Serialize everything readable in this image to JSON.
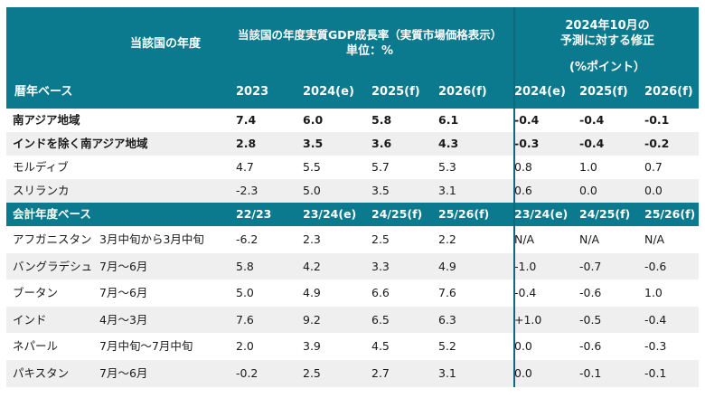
{
  "header": {
    "country_fiscal_year": "当該国の年度",
    "gdp_title_line1": "当該国の年度実質GDP成長率（実質市場価格表示）",
    "gdp_title_line2": "単位：%",
    "revision_line1": "2024年10月の",
    "revision_line2": "予測に対する修正",
    "revision_line3": "(%ポイント）",
    "calendar_basis": "暦年ベース",
    "calendar_columns": [
      "2023",
      "2024(e)",
      "2025(f)",
      "2026(f)",
      "2024(e)",
      "2025(f)",
      "2026(f)"
    ]
  },
  "calendar_rows": [
    {
      "name": "南アジア地域",
      "period": "",
      "values": [
        "7.4",
        "6.0",
        "5.8",
        "6.1",
        "-0.4",
        "-0.4",
        "-0.1"
      ],
      "bold": true
    },
    {
      "name": "インドを除く南アジア地域",
      "period": "",
      "values": [
        "2.8",
        "3.5",
        "3.6",
        "4.3",
        "-0.3",
        "-0.4",
        "-0.2"
      ],
      "bold": true
    },
    {
      "name": "モルディブ",
      "period": "",
      "values": [
        "4.7",
        "5.5",
        "5.7",
        "5.3",
        "0.8",
        "1.0",
        "0.7"
      ],
      "bold": false
    },
    {
      "name": "スリランカ",
      "period": "",
      "values": [
        "-2.3",
        "5.0",
        "3.5",
        "3.1",
        "0.6",
        "0.0",
        "0.0"
      ],
      "bold": false
    }
  ],
  "fiscal_header": {
    "label": "会計年度ベース",
    "columns": [
      "22/23",
      "23/24(e)",
      "24/25(f)",
      "25/26(f)",
      "23/24(e)",
      "24/25(f)",
      "25/26(f)"
    ]
  },
  "fiscal_rows": [
    {
      "name": "アフガニスタン",
      "period": "3月中旬から3月中旬",
      "values": [
        "-6.2",
        "2.3",
        "2.5",
        "2.2",
        "N/A",
        "N/A",
        "N/A"
      ]
    },
    {
      "name": "バングラデシュ",
      "period": "7月～6月",
      "values": [
        "5.8",
        "4.2",
        "3.3",
        "4.9",
        "-1.0",
        "-0.7",
        "-0.6"
      ]
    },
    {
      "name": "ブータン",
      "period": "7月～6月",
      "values": [
        "5.0",
        "4.9",
        "6.6",
        "7.6",
        "-0.4",
        "-0.6",
        "1.0"
      ]
    },
    {
      "name": "インド",
      "period": "4月～3月",
      "values": [
        "7.6",
        "9.2",
        "6.5",
        "6.3",
        "+1.0",
        "-0.5",
        "-0.4"
      ]
    },
    {
      "name": "ネパール",
      "period": "7月中旬～7月中旬",
      "values": [
        "2.0",
        "3.9",
        "4.5",
        "5.2",
        "0.0",
        "-0.6",
        "-0.3"
      ]
    },
    {
      "name": "パキスタン",
      "period": "7月～6月",
      "values": [
        "-0.2",
        "2.5",
        "2.7",
        "3.1",
        "0.0",
        "-0.1",
        "-0.1"
      ]
    }
  ],
  "colors": {
    "header_bg": "#0b7a8e",
    "divider": "#0b6a7d",
    "stripe": "#efefef"
  }
}
